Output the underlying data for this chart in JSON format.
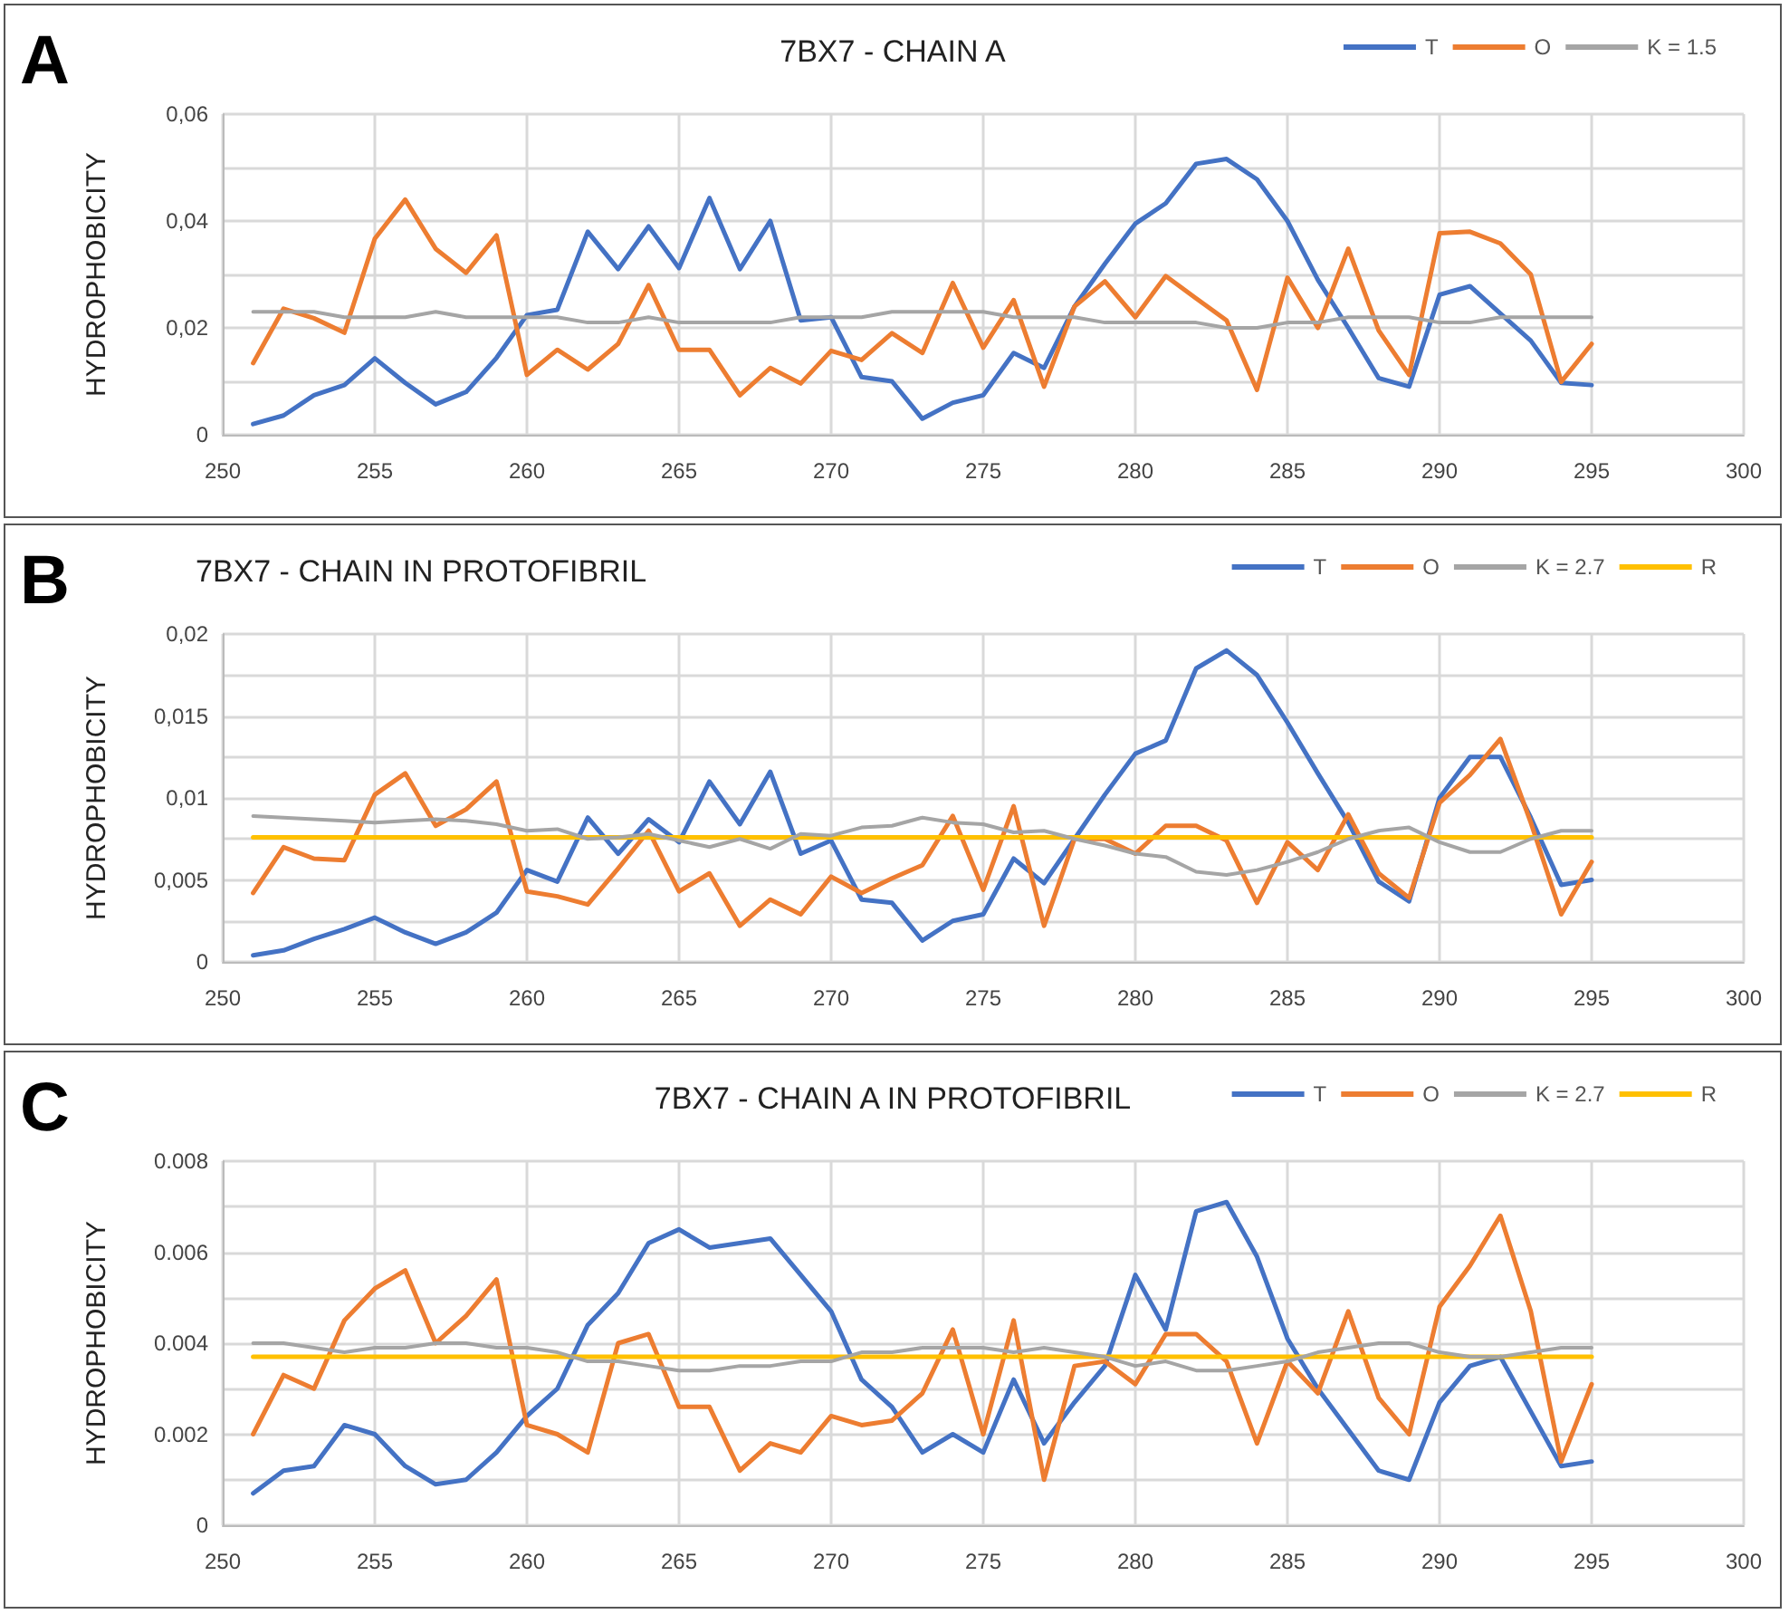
{
  "chart_data": [
    {
      "type": "line",
      "title": "7BX7 - CHAIN A",
      "ylabel": "HYDROPHOBICITY",
      "annotations": [
        "A"
      ],
      "legend": "top right",
      "grid": true,
      "marker": "none",
      "x": [
        251,
        252,
        253,
        254,
        255,
        256,
        257,
        258,
        259,
        260,
        261,
        262,
        263,
        264,
        265,
        266,
        267,
        268,
        269,
        270,
        271,
        272,
        273,
        274,
        275,
        276,
        277,
        278,
        279,
        280,
        281,
        282,
        283,
        284,
        285,
        286,
        287,
        288,
        289,
        290,
        291,
        292,
        293,
        294,
        295
      ],
      "xlim": [
        250,
        300
      ],
      "xticks": [
        250,
        255,
        260,
        265,
        270,
        275,
        280,
        285,
        290,
        295,
        300
      ],
      "ylim": [
        0,
        0.06
      ],
      "yticks": [
        0,
        {
          "value": 0.01,
          "label": null
        },
        {
          "value": 0.02,
          "label": "0,02"
        },
        {
          "value": 0.03,
          "label": null
        },
        {
          "value": 0.04,
          "label": "0,04"
        },
        {
          "value": 0.05,
          "label": null
        },
        {
          "value": 0.06,
          "label": "0,06"
        }
      ],
      "series": [
        {
          "name": "T",
          "color": "#4472c4",
          "values": [
            0.002,
            0.0036,
            0.0074,
            0.0093,
            0.0143,
            0.0097,
            0.0057,
            0.008,
            0.0144,
            0.0224,
            0.0234,
            0.038,
            0.031,
            0.039,
            0.0312,
            0.0443,
            0.031,
            0.04,
            0.0214,
            0.022,
            0.0108,
            0.01,
            0.003,
            0.006,
            0.0074,
            0.0153,
            0.0125,
            0.024,
            0.032,
            0.0395,
            0.0433,
            0.0507,
            0.0516,
            0.0478,
            0.04,
            0.029,
            0.02,
            0.0106,
            0.009,
            0.0262,
            0.0278,
            0.0227,
            0.0176,
            0.0097,
            0.0093
          ]
        },
        {
          "name": "O",
          "color": "#ed7d31",
          "values": [
            0.0134,
            0.0236,
            0.0218,
            0.0191,
            0.0367,
            0.044,
            0.0348,
            0.0303,
            0.0373,
            0.0112,
            0.0159,
            0.0122,
            0.017,
            0.028,
            0.0159,
            0.0159,
            0.0074,
            0.0125,
            0.0096,
            0.0157,
            0.014,
            0.019,
            0.0153,
            0.0284,
            0.0163,
            0.0252,
            0.009,
            0.024,
            0.0287,
            0.022,
            0.0297,
            0.0255,
            0.0214,
            0.0084,
            0.0294,
            0.02,
            0.0348,
            0.0195,
            0.0112,
            0.0377,
            0.038,
            0.0358,
            0.03,
            0.0099,
            0.017
          ]
        },
        {
          "name": "K = 1.5",
          "color": "#a5a5a5",
          "values": [
            0.023,
            0.023,
            0.023,
            0.022,
            0.022,
            0.022,
            0.023,
            0.022,
            0.022,
            0.022,
            0.022,
            0.021,
            0.021,
            0.022,
            0.021,
            0.021,
            0.021,
            0.021,
            0.022,
            0.022,
            0.022,
            0.023,
            0.023,
            0.023,
            0.023,
            0.022,
            0.022,
            0.022,
            0.021,
            0.021,
            0.021,
            0.021,
            0.02,
            0.02,
            0.021,
            0.021,
            0.022,
            0.022,
            0.022,
            0.021,
            0.021,
            0.022,
            0.022,
            0.022,
            0.022
          ]
        }
      ]
    },
    {
      "type": "line",
      "title": "7BX7 - CHAIN IN PROTOFIBRIL",
      "ylabel": "HYDROPHOBICITY",
      "annotations": [
        "B"
      ],
      "legend": "top right",
      "grid": true,
      "marker": "none",
      "x": [
        251,
        252,
        253,
        254,
        255,
        256,
        257,
        258,
        259,
        260,
        261,
        262,
        263,
        264,
        265,
        266,
        267,
        268,
        269,
        270,
        271,
        272,
        273,
        274,
        275,
        276,
        277,
        278,
        279,
        280,
        281,
        282,
        283,
        284,
        285,
        286,
        287,
        288,
        289,
        290,
        291,
        292,
        293,
        294,
        295
      ],
      "xlim": [
        250,
        300
      ],
      "xticks": [
        250,
        255,
        260,
        265,
        270,
        275,
        280,
        285,
        290,
        295,
        300
      ],
      "ylim": [
        0,
        0.02
      ],
      "yticks": [
        0,
        {
          "value": 0.0025,
          "label": null
        },
        {
          "value": 0.005,
          "label": "0,005"
        },
        {
          "value": 0.0075,
          "label": null
        },
        {
          "value": 0.01,
          "label": "0,01"
        },
        {
          "value": 0.0125,
          "label": null
        },
        {
          "value": 0.015,
          "label": "0,015"
        },
        {
          "value": 0.0175,
          "label": null
        },
        {
          "value": 0.02,
          "label": "0,02"
        }
      ],
      "series": [
        {
          "name": "T",
          "color": "#4472c4",
          "values": [
            0.0004,
            0.0007,
            0.0014,
            0.002,
            0.0027,
            0.0018,
            0.0011,
            0.0018,
            0.003,
            0.0056,
            0.0049,
            0.0088,
            0.0066,
            0.0087,
            0.0073,
            0.011,
            0.0084,
            0.0116,
            0.0066,
            0.0074,
            0.0038,
            0.0036,
            0.0013,
            0.0025,
            0.0029,
            0.0063,
            0.0048,
            0.0075,
            0.0102,
            0.0127,
            0.0135,
            0.0179,
            0.019,
            0.0175,
            0.0146,
            0.0115,
            0.0085,
            0.0049,
            0.0037,
            0.01,
            0.0125,
            0.0125,
            0.0088,
            0.0047,
            0.005
          ]
        },
        {
          "name": "O",
          "color": "#ed7d31",
          "values": [
            0.0042,
            0.007,
            0.0063,
            0.0062,
            0.0102,
            0.0115,
            0.0083,
            0.0093,
            0.011,
            0.0043,
            0.004,
            0.0035,
            0.0057,
            0.008,
            0.0043,
            0.0054,
            0.0022,
            0.0038,
            0.0029,
            0.0052,
            0.0042,
            0.0051,
            0.0059,
            0.0089,
            0.0044,
            0.0095,
            0.0022,
            0.0075,
            0.0075,
            0.0066,
            0.0083,
            0.0083,
            0.0074,
            0.0036,
            0.0073,
            0.0056,
            0.009,
            0.0054,
            0.0039,
            0.0097,
            0.0114,
            0.0136,
            0.0085,
            0.0029,
            0.0061
          ]
        },
        {
          "name": "K = 2.7",
          "color": "#a5a5a5",
          "values": [
            0.0089,
            0.0088,
            0.0087,
            0.0086,
            0.0085,
            0.0086,
            0.0087,
            0.0086,
            0.0084,
            0.008,
            0.0081,
            0.0075,
            0.0076,
            0.0078,
            0.0074,
            0.007,
            0.0075,
            0.0069,
            0.0078,
            0.0077,
            0.0082,
            0.0083,
            0.0088,
            0.0085,
            0.0084,
            0.0079,
            0.008,
            0.0075,
            0.0071,
            0.0066,
            0.0064,
            0.0055,
            0.0053,
            0.0056,
            0.0061,
            0.0067,
            0.0075,
            0.008,
            0.0082,
            0.0073,
            0.0067,
            0.0067,
            0.0075,
            0.008,
            0.008
          ]
        },
        {
          "name": "R",
          "color": "#ffc000",
          "values": [
            0.0076,
            0.0076,
            0.0076,
            0.0076,
            0.0076,
            0.0076,
            0.0076,
            0.0076,
            0.0076,
            0.0076,
            0.0076,
            0.0076,
            0.0076,
            0.0076,
            0.0076,
            0.0076,
            0.0076,
            0.0076,
            0.0076,
            0.0076,
            0.0076,
            0.0076,
            0.0076,
            0.0076,
            0.0076,
            0.0076,
            0.0076,
            0.0076,
            0.0076,
            0.0076,
            0.0076,
            0.0076,
            0.0076,
            0.0076,
            0.0076,
            0.0076,
            0.0076,
            0.0076,
            0.0076,
            0.0076,
            0.0076,
            0.0076,
            0.0076,
            0.0076,
            0.0076
          ]
        }
      ]
    },
    {
      "type": "line",
      "title": "7BX7 - CHAIN A IN PROTOFIBRIL",
      "ylabel": "HYDROPHOBICITY",
      "annotations": [
        "C"
      ],
      "legend": "top right",
      "grid": true,
      "marker": "none",
      "x": [
        251,
        252,
        253,
        254,
        255,
        256,
        257,
        258,
        259,
        260,
        261,
        262,
        263,
        264,
        265,
        266,
        267,
        268,
        269,
        270,
        271,
        272,
        273,
        274,
        275,
        276,
        277,
        278,
        279,
        280,
        281,
        282,
        283,
        284,
        285,
        286,
        287,
        288,
        289,
        290,
        291,
        292,
        293,
        294,
        295
      ],
      "xlim": [
        250,
        300
      ],
      "xticks": [
        250,
        255,
        260,
        265,
        270,
        275,
        280,
        285,
        290,
        295,
        300
      ],
      "ylim": [
        0,
        0.008
      ],
      "yticks": [
        0,
        {
          "value": 0.001,
          "label": null
        },
        0.002,
        {
          "value": 0.003,
          "label": null
        },
        0.004,
        {
          "value": 0.005,
          "label": null
        },
        0.006,
        {
          "value": 0.007,
          "label": null
        },
        0.008
      ],
      "series": [
        {
          "name": "T",
          "color": "#4472c4",
          "values": [
            0.0007,
            0.0012,
            0.0013,
            0.0022,
            0.002,
            0.0013,
            0.0009,
            0.001,
            0.0016,
            0.0024,
            0.003,
            0.0044,
            0.0051,
            0.0062,
            0.0065,
            0.0061,
            0.0062,
            0.0063,
            0.0055,
            0.0047,
            0.0032,
            0.0026,
            0.0016,
            0.002,
            0.0016,
            0.0032,
            0.0018,
            0.0027,
            0.0035,
            0.0055,
            0.0043,
            0.0069,
            0.0071,
            0.0059,
            0.0041,
            0.003,
            0.0021,
            0.0012,
            0.001,
            0.0027,
            0.0035,
            0.0037,
            0.0025,
            0.0013,
            0.0014
          ]
        },
        {
          "name": "O",
          "color": "#ed7d31",
          "values": [
            0.002,
            0.0033,
            0.003,
            0.0045,
            0.0052,
            0.0056,
            0.004,
            0.0046,
            0.0054,
            0.0022,
            0.002,
            0.0016,
            0.004,
            0.0042,
            0.0026,
            0.0026,
            0.0012,
            0.0018,
            0.0016,
            0.0024,
            0.0022,
            0.0023,
            0.0029,
            0.0043,
            0.002,
            0.0045,
            0.001,
            0.0035,
            0.0036,
            0.0031,
            0.0042,
            0.0042,
            0.0036,
            0.0018,
            0.0036,
            0.0029,
            0.0047,
            0.0028,
            0.002,
            0.0048,
            0.0057,
            0.0068,
            0.0047,
            0.0014,
            0.0031
          ]
        },
        {
          "name": "K = 2.7",
          "color": "#a5a5a5",
          "values": [
            0.004,
            0.004,
            0.0039,
            0.0038,
            0.0039,
            0.0039,
            0.004,
            0.004,
            0.0039,
            0.0039,
            0.0038,
            0.0036,
            0.0036,
            0.0035,
            0.0034,
            0.0034,
            0.0035,
            0.0035,
            0.0036,
            0.0036,
            0.0038,
            0.0038,
            0.0039,
            0.0039,
            0.0039,
            0.0038,
            0.0039,
            0.0038,
            0.0037,
            0.0035,
            0.0036,
            0.0034,
            0.0034,
            0.0035,
            0.0036,
            0.0038,
            0.0039,
            0.004,
            0.004,
            0.0038,
            0.0037,
            0.0037,
            0.0038,
            0.0039,
            0.0039
          ]
        },
        {
          "name": "R",
          "color": "#ffc000",
          "values": [
            0.0037,
            0.0037,
            0.0037,
            0.0037,
            0.0037,
            0.0037,
            0.0037,
            0.0037,
            0.0037,
            0.0037,
            0.0037,
            0.0037,
            0.0037,
            0.0037,
            0.0037,
            0.0037,
            0.0037,
            0.0037,
            0.0037,
            0.0037,
            0.0037,
            0.0037,
            0.0037,
            0.0037,
            0.0037,
            0.0037,
            0.0037,
            0.0037,
            0.0037,
            0.0037,
            0.0037,
            0.0037,
            0.0037,
            0.0037,
            0.0037,
            0.0037,
            0.0037,
            0.0037,
            0.0037,
            0.0037,
            0.0037,
            0.0037,
            0.0037,
            0.0037,
            0.0037
          ]
        }
      ]
    }
  ]
}
